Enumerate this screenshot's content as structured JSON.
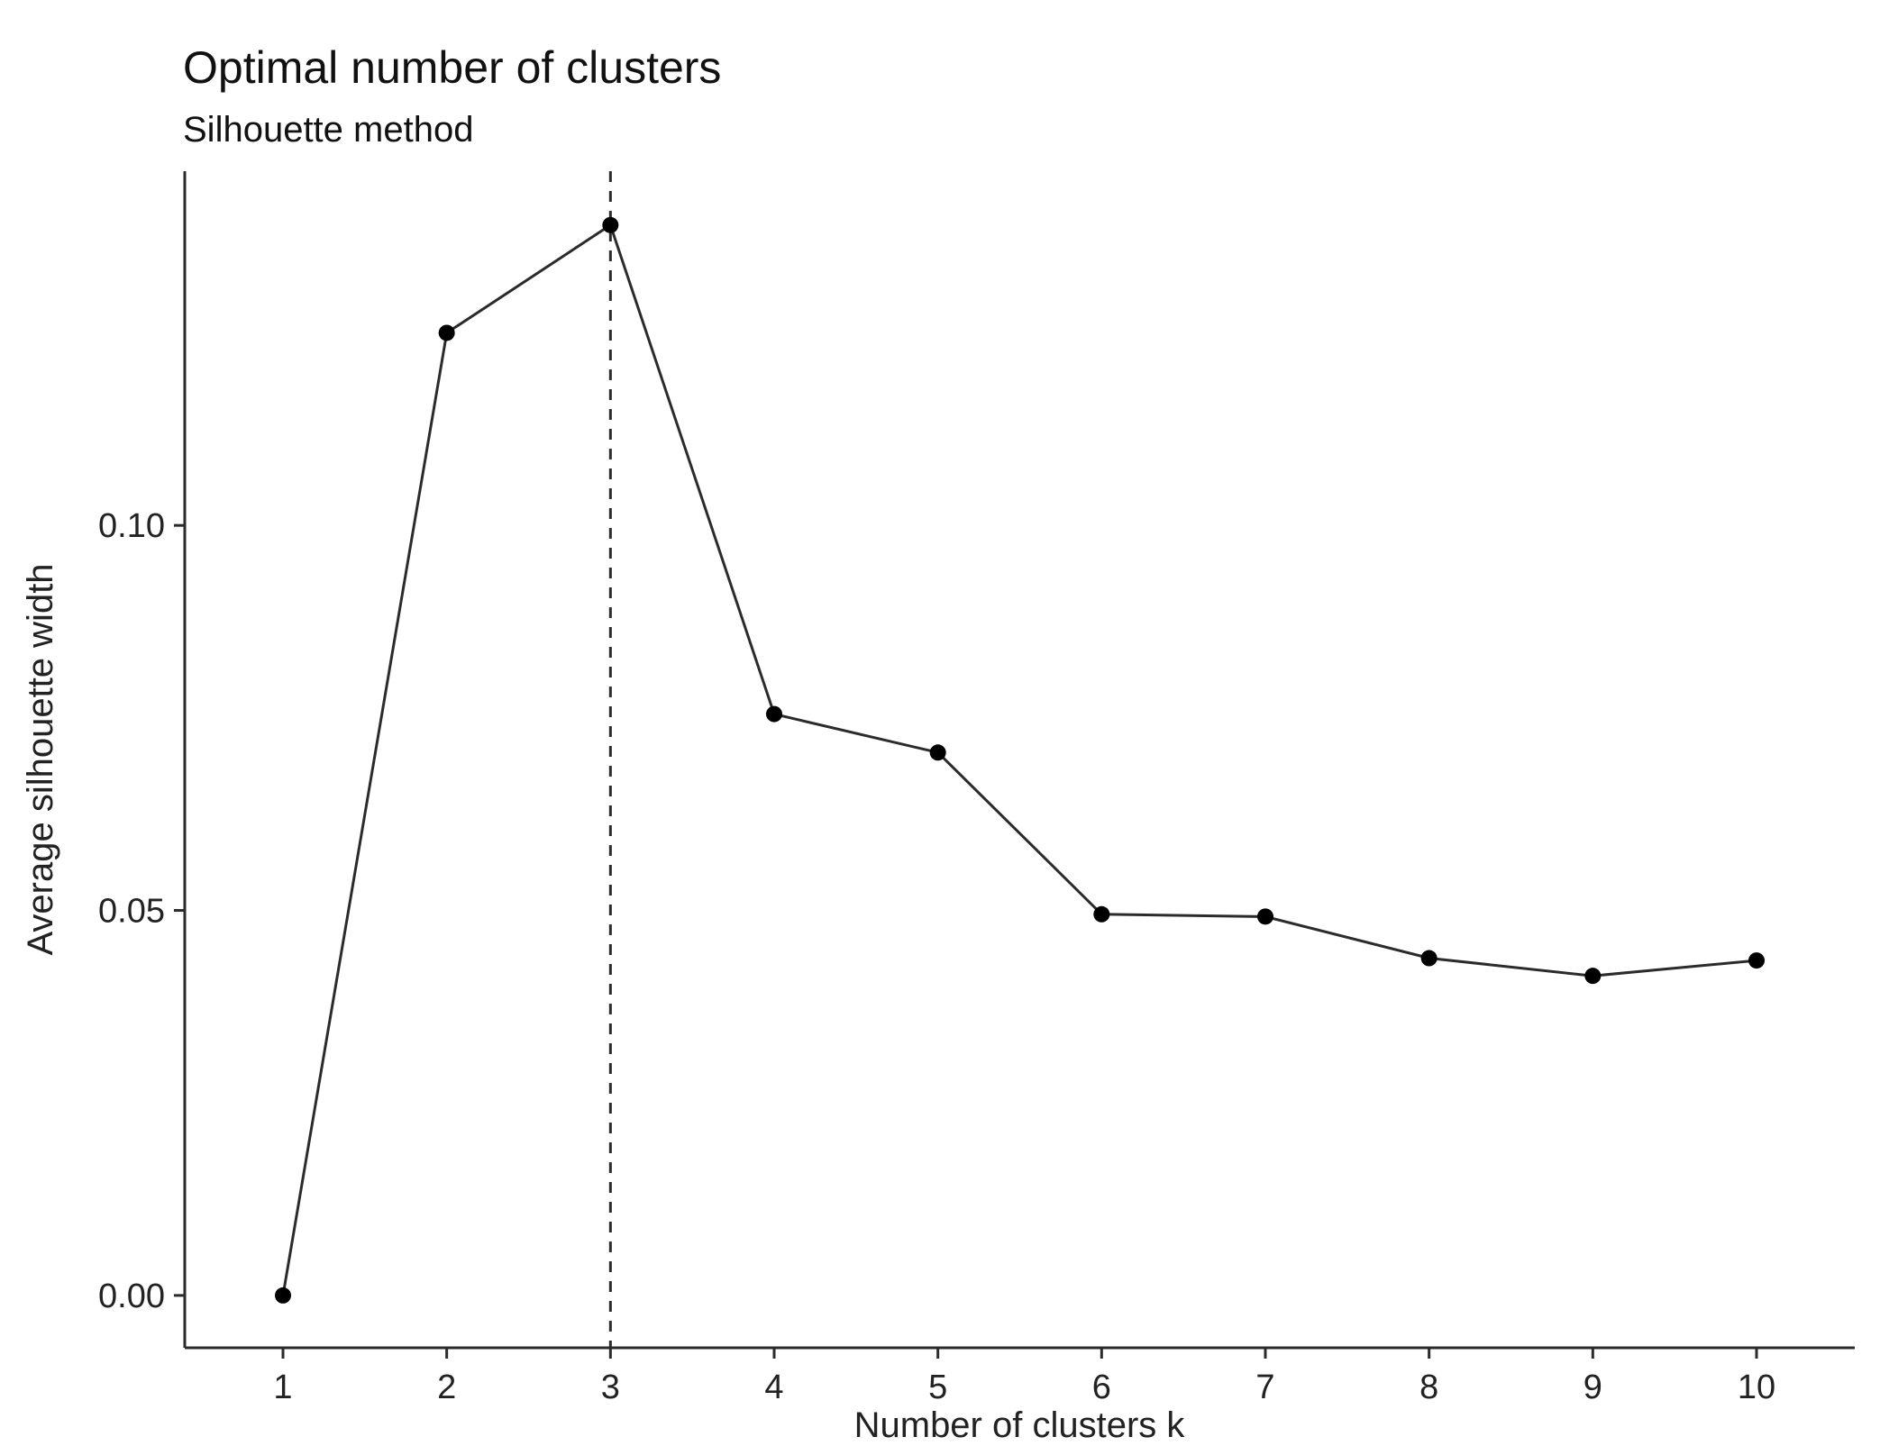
{
  "chart_data": {
    "type": "line",
    "title": "Optimal number of clusters",
    "subtitle": "Silhouette method",
    "xlabel": "Number of clusters k",
    "ylabel": "Average silhouette width",
    "x": [
      1,
      2,
      3,
      4,
      5,
      6,
      7,
      8,
      9,
      10
    ],
    "x_tick_labels": [
      "1",
      "2",
      "3",
      "4",
      "5",
      "6",
      "7",
      "8",
      "9",
      "10"
    ],
    "y": [
      0.0,
      0.125,
      0.139,
      0.0755,
      0.0705,
      0.0495,
      0.0492,
      0.0438,
      0.0415,
      0.0435
    ],
    "y_ticks": [
      0.0,
      0.05,
      0.1
    ],
    "y_tick_labels": [
      "0.00",
      "0.05",
      "0.10"
    ],
    "xlim": [
      0.4,
      10.6
    ],
    "ylim": [
      -0.0068,
      0.146
    ],
    "optimal_k": 3,
    "grid": false,
    "legend": "none",
    "colors": {
      "line": "#2b2b2b",
      "points": "#000000"
    }
  }
}
